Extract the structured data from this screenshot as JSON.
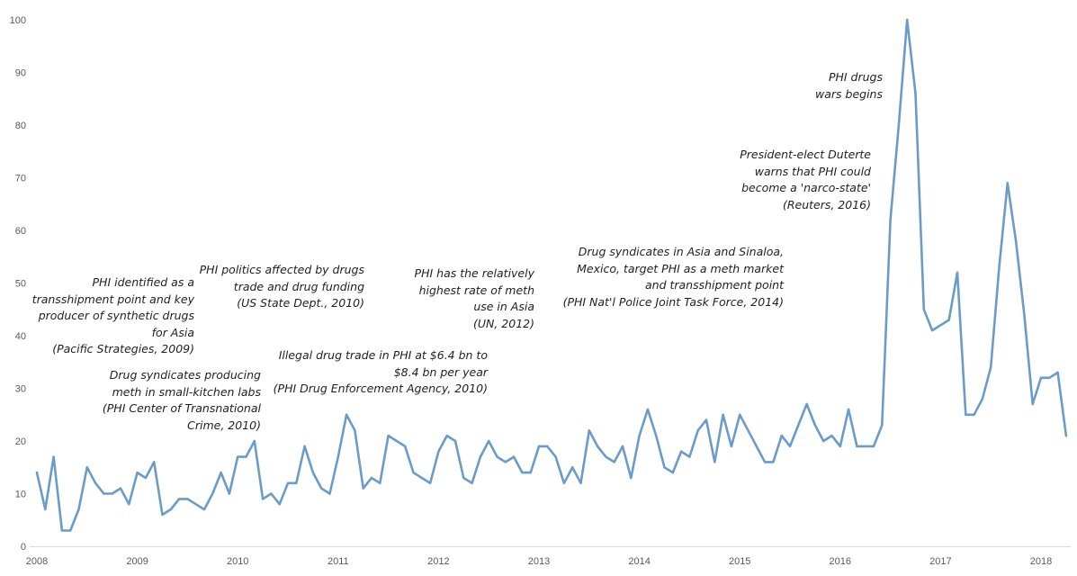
{
  "chart_data": {
    "type": "line",
    "x_start": "2008-01",
    "x_interval": "month",
    "x_ticks": [
      "2008",
      "2009",
      "2010",
      "2011",
      "2012",
      "2013",
      "2014",
      "2015",
      "2016",
      "2017",
      "2018"
    ],
    "y_ticks": [
      0,
      10,
      20,
      30,
      40,
      50,
      60,
      70,
      80,
      90,
      100
    ],
    "ylim": [
      0,
      100
    ],
    "grid": false,
    "line_color": "#6b9bc9",
    "values": [
      14,
      7,
      17,
      3,
      3,
      7,
      15,
      12,
      10,
      10,
      11,
      8,
      14,
      13,
      16,
      6,
      7,
      9,
      9,
      8,
      7,
      10,
      14,
      10,
      17,
      17,
      20,
      9,
      10,
      8,
      12,
      12,
      19,
      14,
      11,
      10,
      17,
      25,
      22,
      11,
      13,
      12,
      21,
      20,
      19,
      14,
      13,
      12,
      18,
      21,
      20,
      13,
      12,
      17,
      20,
      17,
      16,
      17,
      14,
      14,
      19,
      19,
      17,
      12,
      15,
      12,
      22,
      19,
      17,
      16,
      19,
      13,
      21,
      26,
      21,
      15,
      14,
      18,
      17,
      22,
      24,
      16,
      25,
      19,
      25,
      22,
      19,
      16,
      16,
      21,
      19,
      23,
      27,
      23,
      20,
      21,
      19,
      26,
      19,
      19,
      19,
      23,
      62,
      80,
      100,
      86,
      45,
      41,
      42,
      43,
      52,
      25,
      25,
      28,
      34,
      53,
      69,
      58,
      44,
      27,
      32,
      32,
      33,
      21
    ],
    "annotations": [
      [
        "PHI identified as a",
        "transshipment point and key",
        "producer of synthetic drugs",
        "for Asia",
        "(Pacific Strategies, 2009)"
      ],
      [
        "Drug syndicates producing",
        "meth in small-kitchen labs",
        "(PHI Center of Transnational",
        "Crime, 2010)"
      ],
      [
        "PHI politics affected by drugs",
        "trade and drug funding",
        "(US State Dept., 2010)"
      ],
      [
        "Illegal drug trade in PHI at $6.4 bn to",
        "$8.4 bn per year",
        "(PHI Drug Enforcement Agency, 2010)"
      ],
      [
        "PHI has the relatively",
        "highest rate of meth",
        "use in Asia",
        "(UN, 2012)"
      ],
      [
        "Drug syndicates in Asia and Sinaloa,",
        "Mexico, target PHI as a meth market",
        "and transshipment point",
        "(PHI Nat'l Police Joint Task Force, 2014)"
      ],
      [
        "President-elect Duterte",
        "warns that PHI could",
        "become a 'narco-state'",
        "(Reuters, 2016)"
      ],
      [
        "PHI drugs",
        "wars begins"
      ]
    ]
  }
}
